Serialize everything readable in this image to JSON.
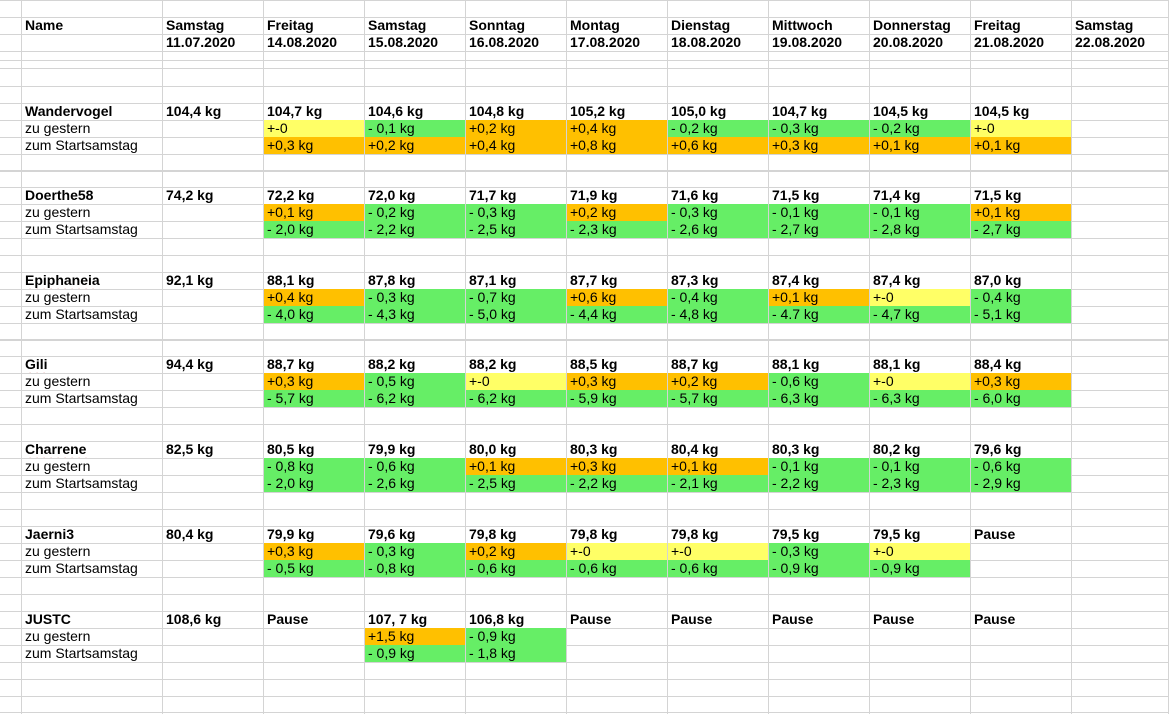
{
  "header": {
    "name_label": "Name",
    "days": [
      {
        "weekday": "Samstag",
        "date": "11.07.2020"
      },
      {
        "weekday": "Freitag",
        "date": "14.08.2020"
      },
      {
        "weekday": "Samstag",
        "date": "15.08.2020"
      },
      {
        "weekday": "Sonntag",
        "date": "16.08.2020"
      },
      {
        "weekday": "Montag",
        "date": "17.08.2020"
      },
      {
        "weekday": "Dienstag",
        "date": "18.08.2020"
      },
      {
        "weekday": "Mittwoch",
        "date": "19.08.2020"
      },
      {
        "weekday": "Donnerstag",
        "date": "20.08.2020"
      },
      {
        "weekday": "Freitag",
        "date": "21.08.2020"
      },
      {
        "weekday": "Samstag",
        "date": "22.08.2020"
      }
    ]
  },
  "row_labels": {
    "vs_yesterday": "zu gestern",
    "vs_start": "zum Startsamstag"
  },
  "colors": {
    "zero": "#ffff66",
    "gain": "#ffc000",
    "loss": "#66ee66"
  },
  "people": [
    {
      "name": "Wandervogel",
      "underline": false,
      "weights": [
        "104,4 kg",
        "104,7 kg",
        "104,6 kg",
        "104,8 kg",
        "105,2 kg",
        "105,0 kg",
        "104,7 kg",
        "104,5 kg",
        "104,5 kg",
        ""
      ],
      "vs_yesterday": [
        "",
        "+-0",
        "- 0,1 kg",
        "+0,2 kg",
        "+0,4 kg",
        "- 0,2 kg",
        "- 0,3 kg",
        "- 0,2 kg",
        "+-0",
        ""
      ],
      "vs_yesterday_status": [
        "",
        "zero",
        "loss",
        "gain",
        "gain",
        "loss",
        "loss",
        "loss",
        "zero",
        ""
      ],
      "vs_start": [
        "",
        "+0,3 kg",
        "+0,2 kg",
        "+0,4 kg",
        "+0,8 kg",
        "+0,6 kg",
        "+0,3 kg",
        "+0,1 kg",
        "+0,1 kg",
        ""
      ],
      "vs_start_status": [
        "",
        "gain",
        "gain",
        "gain",
        "gain",
        "gain",
        "gain",
        "gain",
        "gain",
        ""
      ]
    },
    {
      "name": "Doerthe58",
      "underline": false,
      "weights": [
        "74,2 kg",
        "72,2 kg",
        "72,0 kg",
        "71,7 kg",
        "71,9 kg",
        "71,6 kg",
        "71,5 kg",
        "71,4 kg",
        "71,5 kg",
        ""
      ],
      "vs_yesterday": [
        "",
        "+0,1 kg",
        "- 0,2 kg",
        "- 0,3 kg",
        "+0,2 kg",
        "- 0,3 kg",
        "- 0,1 kg",
        "- 0,1 kg",
        "+0,1 kg",
        ""
      ],
      "vs_yesterday_status": [
        "",
        "gain",
        "loss",
        "loss",
        "gain",
        "loss",
        "loss",
        "loss",
        "gain",
        ""
      ],
      "vs_start": [
        "",
        "- 2,0 kg",
        "- 2,2 kg",
        "- 2,5 kg",
        "- 2,3 kg",
        "- 2,6 kg",
        "- 2,7 kg",
        "- 2,8 kg",
        "- 2,7 kg",
        ""
      ],
      "vs_start_status": [
        "",
        "loss",
        "loss",
        "loss",
        "loss",
        "loss",
        "loss",
        "loss",
        "loss",
        ""
      ]
    },
    {
      "name": "Epiphaneia",
      "underline": true,
      "weights": [
        "92,1 kg",
        "88,1 kg",
        "87,8 kg",
        "87,1 kg",
        "87,7 kg",
        "87,3 kg",
        "87,4 kg",
        "87,4 kg",
        "87,0 kg",
        ""
      ],
      "vs_yesterday": [
        "",
        "+0,4 kg",
        "- 0,3 kg",
        "- 0,7 kg",
        "+0,6 kg",
        "- 0,4 kg",
        "+0,1 kg",
        "+-0",
        "- 0,4 kg",
        ""
      ],
      "vs_yesterday_status": [
        "",
        "gain",
        "loss",
        "loss",
        "gain",
        "loss",
        "gain",
        "zero",
        "loss",
        ""
      ],
      "vs_start": [
        "",
        "- 4,0 kg",
        "- 4,3 kg",
        "- 5,0 kg",
        "- 4,4 kg",
        "- 4,8 kg",
        "- 4.7 kg",
        "- 4,7 kg",
        "- 5,1 kg",
        ""
      ],
      "vs_start_status": [
        "",
        "loss",
        "loss",
        "loss",
        "loss",
        "loss",
        "loss",
        "loss",
        "loss",
        ""
      ]
    },
    {
      "name": "Gili",
      "underline": true,
      "weights": [
        "94,4 kg",
        "88,7 kg",
        "88,2 kg",
        "88,2 kg",
        "88,5 kg",
        "88,7 kg",
        "88,1 kg",
        "88,1 kg",
        "88,4 kg",
        ""
      ],
      "vs_yesterday": [
        "",
        "+0,3 kg",
        "- 0,5 kg",
        "+-0",
        "+0,3 kg",
        "+0,2 kg",
        "- 0,6 kg",
        "+-0",
        "+0,3 kg",
        ""
      ],
      "vs_yesterday_status": [
        "",
        "gain",
        "loss",
        "zero",
        "gain",
        "gain",
        "loss",
        "zero",
        "gain",
        ""
      ],
      "vs_start": [
        "",
        "- 5,7 kg",
        "- 6,2 kg",
        "- 6,2 kg",
        "- 5,9 kg",
        "- 5,7 kg",
        "- 6,3 kg",
        "- 6,3 kg",
        "- 6,0 kg",
        ""
      ],
      "vs_start_status": [
        "",
        "loss",
        "loss",
        "loss",
        "loss",
        "loss",
        "loss",
        "loss",
        "loss",
        ""
      ]
    },
    {
      "name": "Charrene",
      "underline": true,
      "weights": [
        "82,5 kg",
        "80,5 kg",
        "79,9 kg",
        "80,0 kg",
        "80,3 kg",
        "80,4 kg",
        "80,3 kg",
        "80,2 kg",
        "79,6 kg",
        ""
      ],
      "vs_yesterday": [
        "",
        "- 0,8 kg",
        "- 0,6 kg",
        "+0,1 kg",
        "+0,3 kg",
        "+0,1 kg",
        "- 0,1 kg",
        "- 0,1 kg",
        "- 0,6 kg",
        ""
      ],
      "vs_yesterday_status": [
        "",
        "loss",
        "loss",
        "gain",
        "gain",
        "gain",
        "loss",
        "loss",
        "loss",
        ""
      ],
      "vs_start": [
        "",
        "- 2,0 kg",
        "- 2,6 kg",
        "- 2,5 kg",
        "- 2,2 kg",
        "- 2,1 kg",
        "- 2,2 kg",
        "- 2,3 kg",
        "- 2,9 kg",
        ""
      ],
      "vs_start_status": [
        "",
        "loss",
        "loss",
        "loss",
        "loss",
        "loss",
        "loss",
        "loss",
        "loss",
        ""
      ]
    },
    {
      "name": "Jaerni3",
      "underline": false,
      "weights": [
        "80,4 kg",
        "79,9 kg",
        "79,6 kg",
        "79,8 kg",
        "79,8 kg",
        "79,8 kg",
        "79,5 kg",
        "79,5 kg",
        "Pause",
        ""
      ],
      "vs_yesterday": [
        "",
        "+0,3 kg",
        "- 0,3 kg",
        "+0,2 kg",
        "+-0",
        "+-0",
        "- 0,3 kg",
        "+-0",
        "",
        ""
      ],
      "vs_yesterday_status": [
        "",
        "gain",
        "loss",
        "gain",
        "zero",
        "zero",
        "loss",
        "zero",
        "",
        ""
      ],
      "vs_start": [
        "",
        "- 0,5 kg",
        "- 0,8 kg",
        "- 0,6 kg",
        "- 0,6 kg",
        "- 0,6 kg",
        "- 0,9 kg",
        "- 0,9 kg",
        "",
        ""
      ],
      "vs_start_status": [
        "",
        "loss",
        "loss",
        "loss",
        "loss",
        "loss",
        "loss",
        "loss",
        "",
        ""
      ]
    },
    {
      "name": "JUSTC",
      "underline": false,
      "weights": [
        "108,6 kg",
        "Pause",
        "107, 7 kg",
        "106,8 kg",
        "Pause",
        "Pause",
        "Pause",
        "Pause",
        "Pause",
        ""
      ],
      "vs_yesterday": [
        "",
        "",
        "+1,5 kg",
        "- 0,9 kg",
        "",
        "",
        "",
        "",
        "",
        ""
      ],
      "vs_yesterday_status": [
        "",
        "",
        "gain",
        "loss",
        "",
        "",
        "",
        "",
        "",
        ""
      ],
      "vs_start": [
        "",
        "",
        "- 0,9 kg",
        "- 1,8 kg",
        "",
        "",
        "",
        "",
        "",
        ""
      ],
      "vs_start_status": [
        "",
        "",
        "loss",
        "loss",
        "",
        "",
        "",
        "",
        "",
        ""
      ]
    }
  ]
}
